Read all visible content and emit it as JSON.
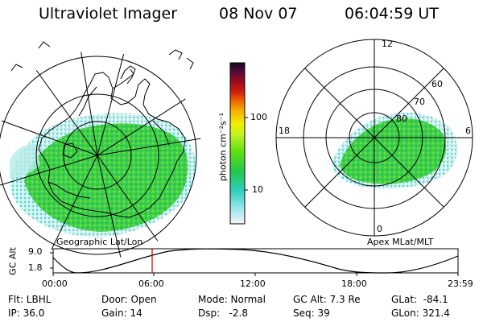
{
  "header": {
    "title": "Ultraviolet Imager",
    "date": "08 Nov 07",
    "time": "06:04:59 UT"
  },
  "left_panel": {
    "caption": "Geographic Lat/Lon"
  },
  "right_panel": {
    "caption": "Apex MLat/MLT",
    "mlt_labels": {
      "top": "12",
      "left": "18",
      "right": "6",
      "bottom": "0"
    },
    "lat_labels": [
      "60",
      "70",
      "80"
    ]
  },
  "colorbar": {
    "label": "photon cm⁻²s⁻¹",
    "ticks": [
      "100",
      "10"
    ],
    "colors": [
      "#1a0a2e",
      "#3c0a3c",
      "#6a0a30",
      "#a00a1a",
      "#d01e10",
      "#f06a00",
      "#f5b000",
      "#f0f000",
      "#b0f020",
      "#50e010",
      "#20c850",
      "#30d0c0",
      "#a0e8f0",
      "#f0f0f8"
    ]
  },
  "timeline": {
    "y_axis_label": "GC Alt",
    "y_ticks": [
      "9.0",
      "1.8"
    ],
    "x_ticks": [
      "00:00",
      "06:00",
      "12:00",
      "18:00",
      "23:59"
    ],
    "current_time": "06:04:59"
  },
  "info": {
    "flt": "Flt: LBHL",
    "ip": "IP: 36.0",
    "door": "Door: Open",
    "gain": "Gain: 14",
    "mode": "Mode: Normal",
    "dsp": "Dsp:   -2.8",
    "gc_alt": "GC Alt: 7.3 Re",
    "seq": "Seq: 39",
    "glat": "GLat:  -84.1",
    "glon": "GLon: 321.4"
  },
  "colors": {
    "cursor_line": "#c00000",
    "aurora_green": "#2ecf3a",
    "aurora_cyan": "#5fe0d0"
  }
}
